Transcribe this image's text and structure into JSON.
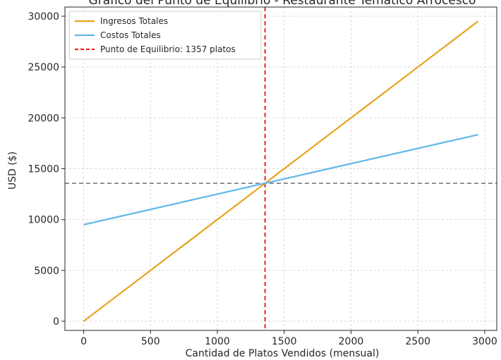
{
  "chart_data": {
    "type": "line",
    "title": "Gráfico del Punto de Equilibrio - Restaurante Temático Arrocesco",
    "xlabel": "Cantidad de Platos Vendidos (mensual)",
    "ylabel": "USD ($)",
    "xlim": [
      -140,
      3090
    ],
    "ylim": [
      -900,
      30900
    ],
    "x_ticks": [
      0,
      500,
      1000,
      1500,
      2000,
      2500,
      3000
    ],
    "y_ticks": [
      0,
      5000,
      10000,
      15000,
      20000,
      25000,
      30000
    ],
    "grid": true,
    "legend_position": "top-left",
    "series": [
      {
        "name": "Ingresos Totales",
        "color": "#E8A31F",
        "x": [
          0,
          2950
        ],
        "y": [
          0,
          29500
        ]
      },
      {
        "name": "Costos Totales",
        "color": "#5DB8E8",
        "x": [
          0,
          2950
        ],
        "y": [
          9500,
          18350
        ]
      }
    ],
    "reference_lines": [
      {
        "orientation": "vertical",
        "name": "Punto de Equilibrio: 1357 platos",
        "x": 1357,
        "color": "#E8262A",
        "style": "dashed",
        "in_legend": true
      },
      {
        "orientation": "horizontal",
        "y": 13570,
        "color": "#7A7A7A",
        "style": "dashed",
        "in_legend": false
      }
    ]
  }
}
